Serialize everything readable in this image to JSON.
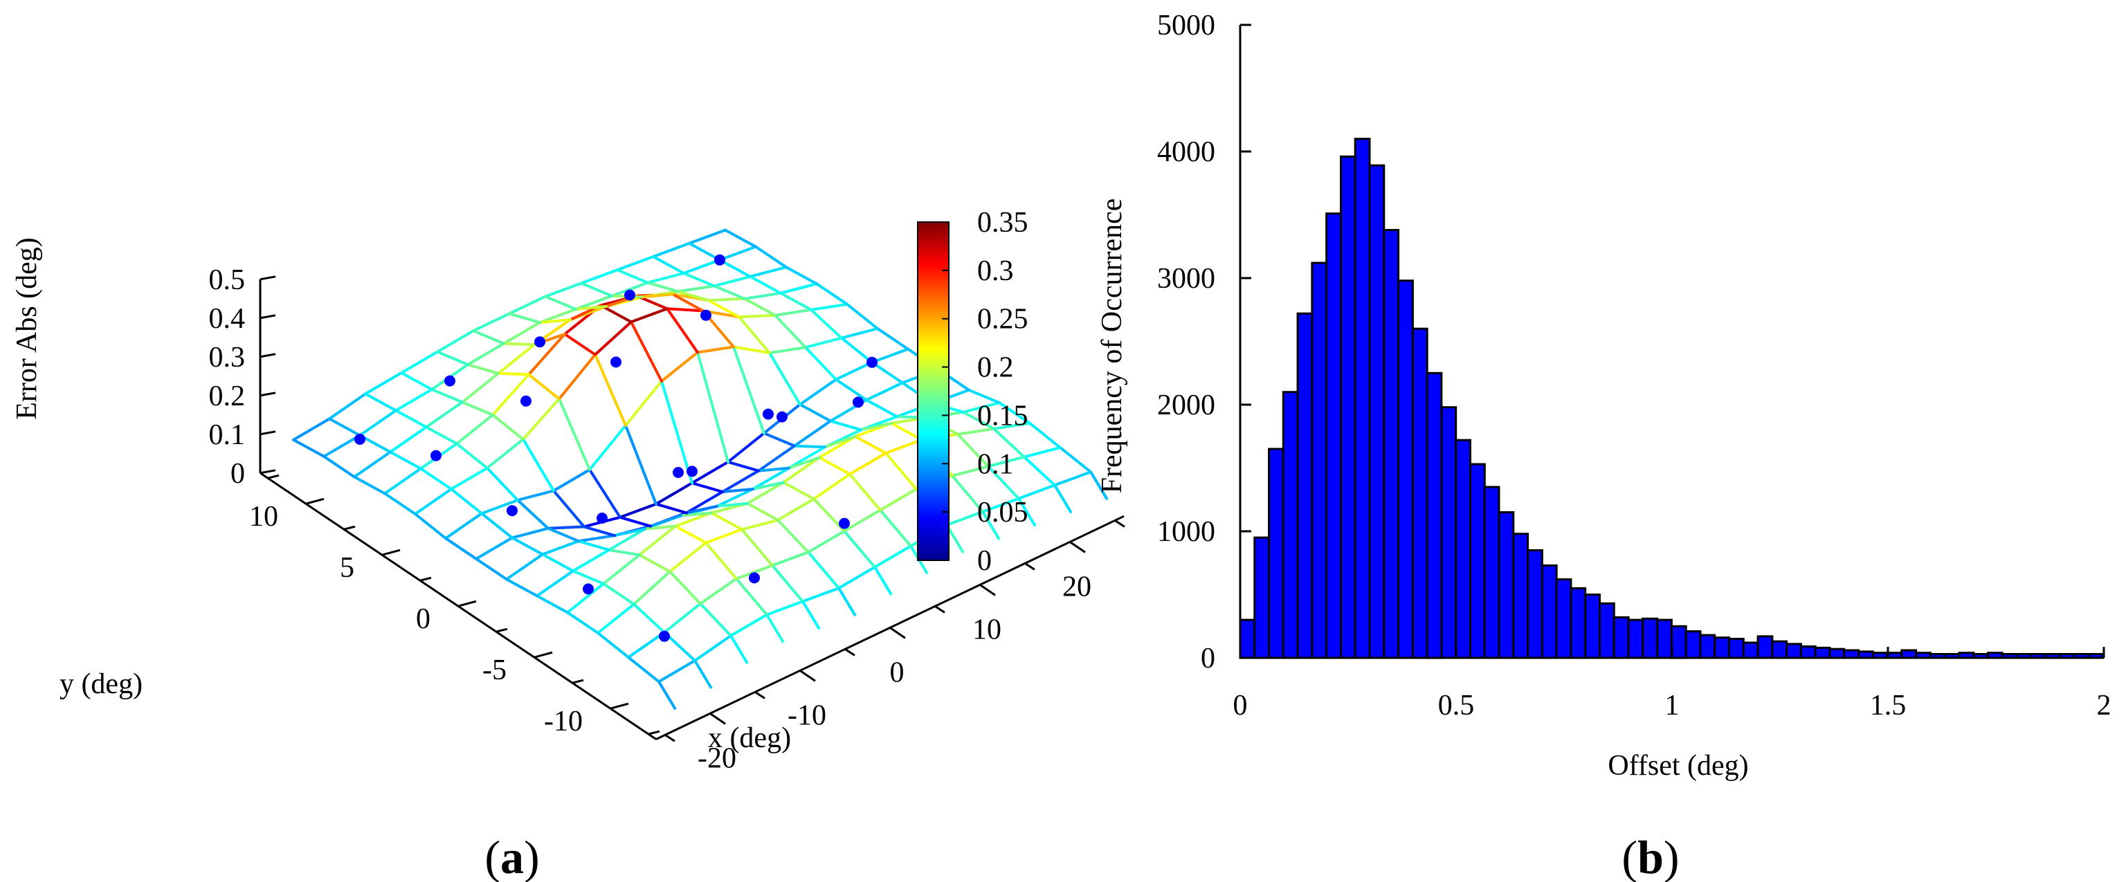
{
  "panels": {
    "a": {
      "label_open": "(",
      "label_letter": "a",
      "label_close": ")"
    },
    "b": {
      "label_open": "(",
      "label_letter": "b",
      "label_close": ")"
    }
  },
  "chart_data": [
    {
      "type": "surface3d",
      "panel": "a",
      "title": "",
      "xlabel": "x (deg)",
      "ylabel": "y (deg)",
      "zlabel": "Error Abs (deg)",
      "xlim": [
        -20,
        20
      ],
      "ylim": [
        -10,
        10
      ],
      "zlim": [
        0,
        0.5
      ],
      "x_ticks": [
        -20,
        -10,
        0,
        10,
        20
      ],
      "y_ticks": [
        -10,
        -5,
        0,
        5,
        10
      ],
      "z_ticks": [
        0,
        0.1,
        0.2,
        0.3,
        0.4,
        0.5
      ],
      "x_tick_labels": [
        "-20",
        "-10",
        "0",
        "10",
        "20"
      ],
      "y_tick_labels": [
        "-10",
        "-5",
        "0",
        "5",
        "10"
      ],
      "z_tick_labels": [
        "0",
        "0.1",
        "0.2",
        "0.3",
        "0.4",
        "0.5"
      ],
      "grid_x": [
        -24,
        -20,
        -16,
        -12,
        -8,
        -4,
        0,
        4,
        8,
        12,
        16,
        20,
        24
      ],
      "grid_y": [
        -12,
        -10,
        -8,
        -6,
        -4,
        -2,
        0,
        2,
        4,
        6,
        8,
        10,
        12
      ],
      "z_surface": [
        [
          0.1,
          0.11,
          0.13,
          0.14,
          0.13,
          0.12,
          0.13,
          0.14,
          0.15,
          0.14,
          0.13,
          0.12,
          0.11
        ],
        [
          0.11,
          0.13,
          0.16,
          0.18,
          0.17,
          0.16,
          0.17,
          0.18,
          0.19,
          0.18,
          0.16,
          0.14,
          0.12
        ],
        [
          0.12,
          0.15,
          0.19,
          0.22,
          0.21,
          0.19,
          0.2,
          0.22,
          0.23,
          0.22,
          0.19,
          0.16,
          0.13
        ],
        [
          0.12,
          0.15,
          0.18,
          0.21,
          0.2,
          0.18,
          0.19,
          0.21,
          0.22,
          0.21,
          0.18,
          0.15,
          0.13
        ],
        [
          0.11,
          0.13,
          0.14,
          0.15,
          0.14,
          0.12,
          0.12,
          0.13,
          0.14,
          0.14,
          0.13,
          0.12,
          0.11
        ],
        [
          0.1,
          0.12,
          0.11,
          0.08,
          0.06,
          0.05,
          0.06,
          0.07,
          0.09,
          0.11,
          0.12,
          0.12,
          0.11
        ],
        [
          0.1,
          0.11,
          0.09,
          0.05,
          0.03,
          0.02,
          0.03,
          0.04,
          0.07,
          0.1,
          0.12,
          0.12,
          0.11
        ],
        [
          0.1,
          0.12,
          0.11,
          0.09,
          0.1,
          0.17,
          0.24,
          0.27,
          0.24,
          0.18,
          0.15,
          0.13,
          0.11
        ],
        [
          0.11,
          0.13,
          0.14,
          0.17,
          0.23,
          0.3,
          0.34,
          0.33,
          0.28,
          0.22,
          0.18,
          0.15,
          0.12
        ],
        [
          0.11,
          0.13,
          0.15,
          0.18,
          0.24,
          0.3,
          0.33,
          0.31,
          0.27,
          0.21,
          0.17,
          0.14,
          0.12
        ],
        [
          0.1,
          0.12,
          0.14,
          0.16,
          0.19,
          0.22,
          0.24,
          0.23,
          0.21,
          0.18,
          0.15,
          0.13,
          0.11
        ],
        [
          0.1,
          0.11,
          0.13,
          0.14,
          0.16,
          0.17,
          0.18,
          0.17,
          0.16,
          0.15,
          0.13,
          0.12,
          0.11
        ],
        [
          0.09,
          0.1,
          0.12,
          0.13,
          0.14,
          0.15,
          0.15,
          0.15,
          0.14,
          0.13,
          0.12,
          0.11,
          0.1
        ]
      ],
      "sample_points": [
        {
          "x": -20,
          "y": 10,
          "z": 0.1
        },
        {
          "x": -20,
          "y": 5,
          "z": 0.19
        },
        {
          "x": -20,
          "y": 0,
          "z": 0.18
        },
        {
          "x": -20,
          "y": -5,
          "z": 0.11
        },
        {
          "x": -20,
          "y": -10,
          "z": 0.12
        },
        {
          "x": -10,
          "y": 10,
          "z": 0.14
        },
        {
          "x": -10,
          "y": 5,
          "z": 0.22
        },
        {
          "x": -10,
          "y": 0,
          "z": 0.05
        },
        {
          "x": -10,
          "y": -5,
          "z": 0.3
        },
        {
          "x": -10,
          "y": -10,
          "z": 0.16
        },
        {
          "x": 0,
          "y": 10,
          "z": 0.13
        },
        {
          "x": 0,
          "y": 5,
          "z": 0.21
        },
        {
          "x": 0,
          "y": 0,
          "z": 0.06
        },
        {
          "x": 0,
          "y": -5,
          "z": 0.34
        },
        {
          "x": 0,
          "y": -10,
          "z": 0.19
        },
        {
          "x": 10,
          "y": 10,
          "z": 0.14
        },
        {
          "x": 10,
          "y": 5,
          "z": 0.22
        },
        {
          "x": 10,
          "y": 0,
          "z": 0.09
        },
        {
          "x": 10,
          "y": -5,
          "z": 0.26
        },
        {
          "x": 10,
          "y": -10,
          "z": 0.17
        },
        {
          "x": 20,
          "y": 10,
          "z": 0.12
        },
        {
          "x": 20,
          "y": 0,
          "z": 0.12
        }
      ],
      "colorbar": {
        "colormap": "jet",
        "range": [
          0,
          0.35
        ],
        "ticks": [
          0,
          0.05,
          0.1,
          0.15,
          0.2,
          0.25,
          0.3,
          0.35
        ],
        "tick_labels": [
          "0",
          "0.05",
          "0.1",
          "0.15",
          "0.2",
          "0.25",
          "0.3",
          "0.35"
        ]
      },
      "marker_color": "#0000ff",
      "grid": false,
      "legend": "none"
    },
    {
      "type": "bar",
      "subtype": "histogram",
      "panel": "b",
      "title": "",
      "xlabel": "Offset (deg)",
      "ylabel": "Frequency of Occurrence",
      "xlim": [
        0,
        2
      ],
      "ylim": [
        0,
        5000
      ],
      "x_ticks": [
        0,
        0.5,
        1,
        1.5,
        2
      ],
      "y_ticks": [
        0,
        1000,
        2000,
        3000,
        4000,
        5000
      ],
      "x_tick_labels": [
        "0",
        "0.5",
        "1",
        "1.5",
        "2"
      ],
      "y_tick_labels": [
        "0",
        "1000",
        "2000",
        "3000",
        "4000",
        "5000"
      ],
      "bin_width": 0.0333,
      "bin_start": 0,
      "values": [
        300,
        950,
        1650,
        2100,
        2720,
        3120,
        3510,
        3960,
        4100,
        3890,
        3380,
        2980,
        2600,
        2250,
        1980,
        1720,
        1530,
        1350,
        1150,
        980,
        850,
        730,
        620,
        550,
        500,
        430,
        320,
        300,
        310,
        300,
        250,
        210,
        180,
        160,
        150,
        120,
        170,
        130,
        110,
        90,
        80,
        70,
        60,
        50,
        40,
        40,
        60,
        40,
        30,
        30,
        40,
        30,
        40,
        30,
        30,
        30,
        30,
        30,
        30,
        30
      ],
      "bar_color": "#0000ff",
      "edge_color": "#000000",
      "grid": false,
      "legend": "none"
    }
  ]
}
